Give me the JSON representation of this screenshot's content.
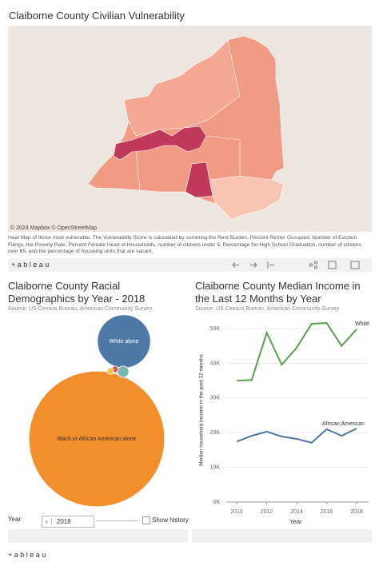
{
  "map_panel": {
    "title": "Claiborne County Civilian Vulnerability",
    "attribution": "© 2024 Mapbox © OpenStreetMap",
    "description": "Heat Map of those most vulnerable. The Vulnerability Score is calculated by summing the Rent Burden, Percent Renter Occupied, Number of Eviction Filings, the Poverty Rate, Percent Female Head of Households, number of citizens under 5, Percentage No High School Graduation, number of citizens over 65, and the percentage of houseing units that are vacant."
  },
  "toolbar": {
    "logo": "+ a b l e a u"
  },
  "chart_data": [
    {
      "type": "bubble",
      "title": "Claiborne County Racial Demographics by Year - 2018",
      "source": "Source: US Census Bureau, American Community Survey",
      "categories": [
        "White alone",
        "Black or African American alone",
        null,
        null,
        null
      ],
      "values": [
        13,
        85,
        0.6,
        0.2,
        0.2
      ],
      "colors": [
        "#4e79a7",
        "#f28e2b",
        "#76b7b2",
        "#e15759",
        "#edc948"
      ],
      "label_colors": [
        "#ffffff",
        "#333333"
      ]
    },
    {
      "type": "line",
      "title": "Claiborne County Median Income in the Last 12 Months by Year",
      "source": "Source: US Census Bureau, American Community Survey",
      "x_label": "Year",
      "y_label": "Median household income in the past 12 months",
      "x": [
        2010,
        2011,
        2012,
        2013,
        2014,
        2015,
        2016,
        2017,
        2018
      ],
      "xlim": [
        2009.3,
        2018.8
      ],
      "xticks": [
        2010,
        2012,
        2014,
        2016,
        2018
      ],
      "ylim": [
        0,
        53000
      ],
      "yticks": [
        {
          "value": 0,
          "label": "0K"
        },
        {
          "value": 10000,
          "label": "10K"
        },
        {
          "value": 20000,
          "label": "20K"
        },
        {
          "value": 30000,
          "label": "30K"
        },
        {
          "value": 40000,
          "label": "40K"
        },
        {
          "value": 50000,
          "label": "50K"
        }
      ],
      "grid": true,
      "series": [
        {
          "name": "White",
          "color": "#59a14f",
          "values": [
            35000,
            35200,
            48800,
            39600,
            44500,
            51400,
            51600,
            45000,
            49800
          ]
        },
        {
          "name": "African American",
          "color": "#4e79a7",
          "values": [
            17400,
            19100,
            20300,
            18900,
            18200,
            17100,
            21000,
            19100,
            21200
          ]
        }
      ]
    }
  ],
  "controls": {
    "year_label": "Year",
    "year_value": "2018",
    "show_history": "Show history"
  }
}
